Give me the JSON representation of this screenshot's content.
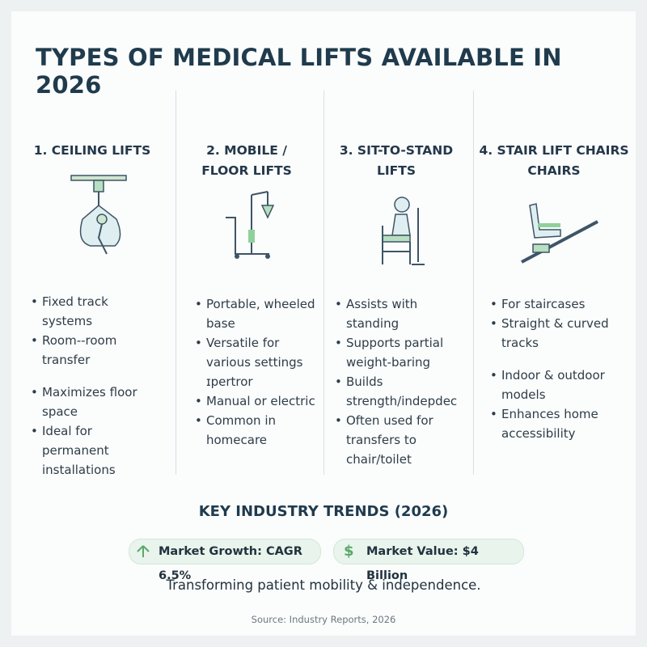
{
  "header": {
    "title": "TYPES OF MEDICAL LIFTS AVAILABLE IN  2026"
  },
  "columns": [
    {
      "title": [
        "1. CEILING LIFTS"
      ],
      "bullets": [
        "Fixed track systems",
        "Room--room transfer",
        "Maximizes floor space",
        "Ideal for permanent installations"
      ]
    },
    {
      "title": [
        "2. MOBILE /",
        "FLOOR LIFTS"
      ],
      "bullets": [
        "Portable, wheeled base",
        "Versatile for various settings ɪpertror",
        "Manual or electric",
        "Common in homecare"
      ]
    },
    {
      "title": [
        "3. SIT-TO-STAND",
        "LIFTS"
      ],
      "bullets": [
        "Assists with standing",
        "Supports partial weight-baring",
        "Builds strength/indepdec",
        "Often used for transfers to chair/toilet"
      ]
    },
    {
      "title": [
        "4. STAIR LIFT CHAIRS",
        "CHAIRS"
      ],
      "bullets": [
        "For staircases",
        "Straight & curved tracks",
        "Indoor & outdoor models",
        "Enhances home accessibility"
      ]
    }
  ],
  "trends": {
    "title": "KEY INDUSTRY TRENDS (2026)",
    "growth": "Market Growth: CAGR 6.5%",
    "value_icon": "$",
    "value": "Market Value: $4 Billion"
  },
  "tagline": "Transforming patient mobility & independence.",
  "source": "Source: Industry Reports, 2026"
}
